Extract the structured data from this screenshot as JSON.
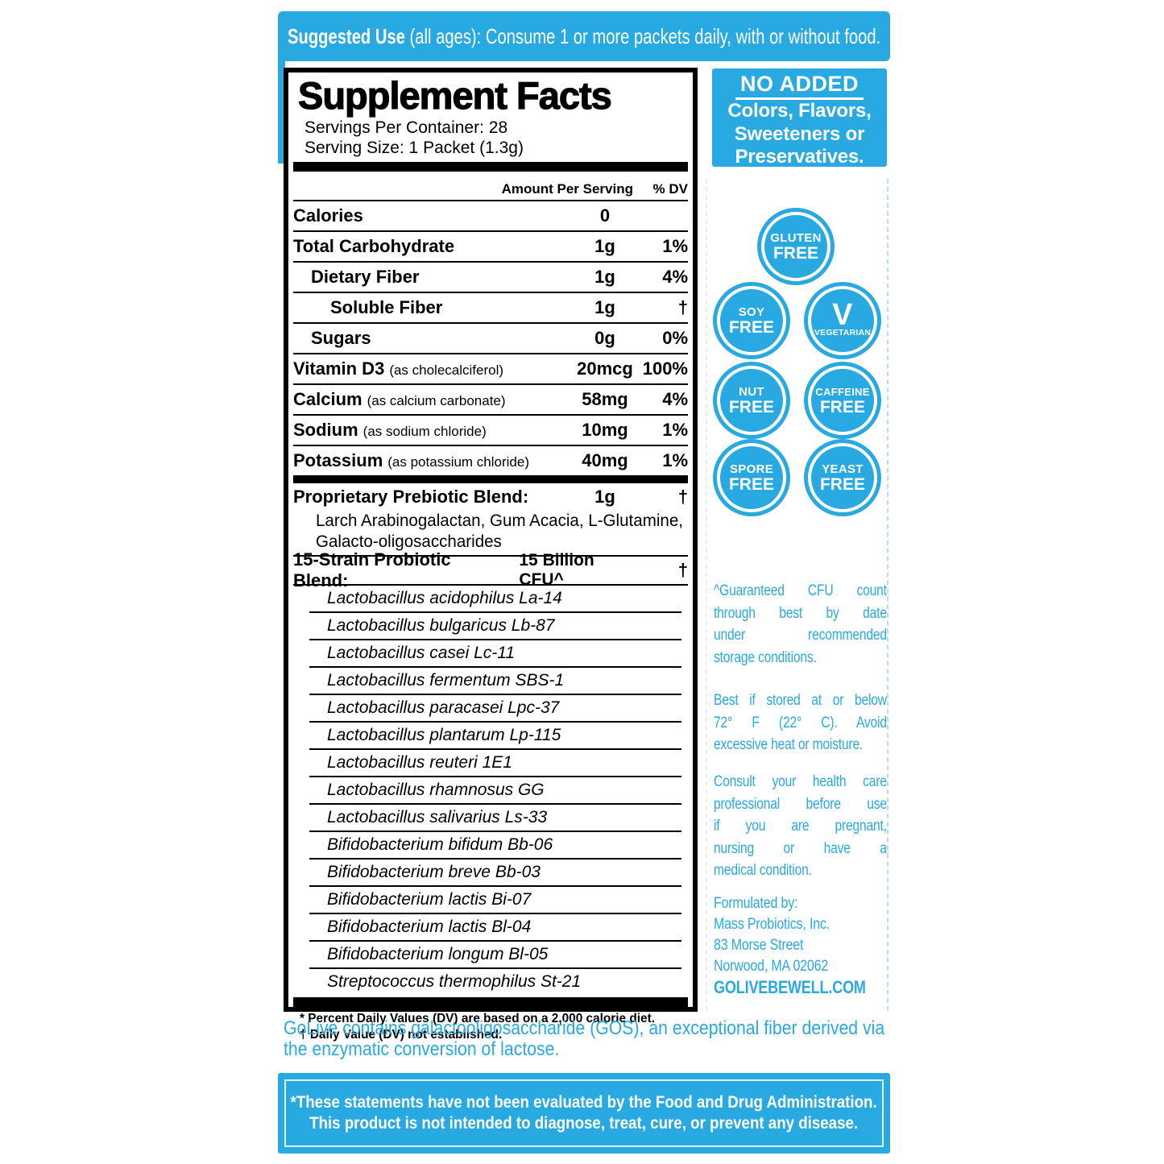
{
  "colors": {
    "blue": "#29a9e1",
    "black": "#000000",
    "white": "#ffffff",
    "dash_blue": "#b5ddf3"
  },
  "banner": {
    "bold": "Suggested Use",
    "rest": " (all ages):  Consume 1 or more packets daily, with or without food."
  },
  "facts": {
    "title": "Supplement Facts",
    "servings_per_container": "Servings Per Container: 28",
    "serving_size": "Serving Size: 1 Packet (1.3g)",
    "col_amount": "Amount Per Serving",
    "col_dv": "% DV",
    "rows": [
      {
        "label": "Calories",
        "sub": "",
        "amount": "0",
        "dv": "",
        "ind": "i0"
      },
      {
        "label": "Total Carbohydrate",
        "sub": "",
        "amount": "1g",
        "dv": "1%",
        "ind": "i0"
      },
      {
        "label": "Dietary Fiber",
        "sub": "",
        "amount": "1g",
        "dv": "4%",
        "ind": "i1"
      },
      {
        "label": "Soluble Fiber",
        "sub": "",
        "amount": "1g",
        "dv": "†",
        "ind": "i2"
      },
      {
        "label": "Sugars",
        "sub": "",
        "amount": "0g",
        "dv": "0%",
        "ind": "i1"
      },
      {
        "label": "Vitamin D3",
        "sub": "(as cholecalciferol)",
        "amount": "20mcg",
        "dv": "100%",
        "ind": "i0"
      },
      {
        "label": "Calcium",
        "sub": "(as calcium carbonate)",
        "amount": "58mg",
        "dv": "4%",
        "ind": "i0"
      },
      {
        "label": "Sodium",
        "sub": "(as sodium chloride)",
        "amount": "10mg",
        "dv": "1%",
        "ind": "i0"
      },
      {
        "label": "Potassium",
        "sub": "(as potassium chloride)",
        "amount": "40mg",
        "dv": "1%",
        "ind": "i0"
      }
    ],
    "prebiotic": {
      "label": "Proprietary Prebiotic Blend:",
      "amount": "1g",
      "dv": "†",
      "ingredients_line1": "Larch Arabinogalactan, Gum Acacia, L-Glutamine,",
      "ingredients_line2": "Galacto-oligosaccharides"
    },
    "probiotic": {
      "label": "15-Strain Probiotic Blend:",
      "amount": "15 Billion CFU^",
      "dv": "†"
    },
    "strains": [
      "Lactobacillus acidophilus La-14",
      "Lactobacillus bulgaricus Lb-87",
      "Lactobacillus casei Lc-11",
      "Lactobacillus fermentum SBS-1",
      "Lactobacillus paracasei Lpc-37",
      "Lactobacillus plantarum Lp-115",
      "Lactobacillus reuteri 1E1",
      "Lactobacillus rhamnosus GG",
      "Lactobacillus salivarius Ls-33",
      "Bifidobacterium bifidum Bb-06",
      "Bifidobacterium breve Bb-03",
      "Bifidobacterium lactis Bi-07",
      "Bifidobacterium lactis Bl-04",
      "Bifidobacterium longum Bl-05",
      "Streptococcus thermophilus St-21"
    ],
    "footnote_1": "* Percent Daily Values (DV) are based on a 2,000 calorie diet.",
    "footnote_2": "† Daily Value (DV) not established."
  },
  "no_added": {
    "title": "NO ADDED",
    "lines": [
      "Colors, Flavors,",
      "Sweeteners or",
      "Preservatives."
    ]
  },
  "badges": [
    {
      "line1": "GLUTEN",
      "line2": "FREE"
    },
    {
      "line1": "SOY",
      "line2": "FREE"
    },
    {
      "line1": "V",
      "line2": "VEGETARIAN"
    },
    {
      "line1": "NUT",
      "line2": "FREE"
    },
    {
      "line1": "CAFFEINE",
      "line2": "FREE"
    },
    {
      "line1": "SPORE",
      "line2": "FREE"
    },
    {
      "line1": "YEAST",
      "line2": "FREE"
    }
  ],
  "side_notes": [
    {
      "lines": [
        "^Guaranteed CFU count",
        "through best by date",
        "under recommended",
        "storage conditions."
      ]
    },
    {
      "lines": [
        "Best if stored at or below",
        "72° F (22° C). Avoid",
        "excessive heat or moisture."
      ]
    },
    {
      "lines": [
        "Consult your health care",
        "professional before use",
        "if you are pregnant,",
        "nursing or have a",
        "medical condition."
      ]
    }
  ],
  "formulated": {
    "lines": [
      "Formulated by:",
      "Mass Probiotics, Inc.",
      "83 Morse Street",
      "Norwood, MA 02062"
    ],
    "site": "GOLIVEBEWELL.COM"
  },
  "golive_note": {
    "line1": "GoLive contains galactooligosaccharide (GOS), an exceptional fiber derived via",
    "line2": "the enzymatic conversion of lactose."
  },
  "disclaimer": {
    "line1": "*These statements have not been evaluated by the Food and Drug Administration.",
    "line2": "This product is not intended to diagnose, treat, cure, or prevent any disease."
  }
}
